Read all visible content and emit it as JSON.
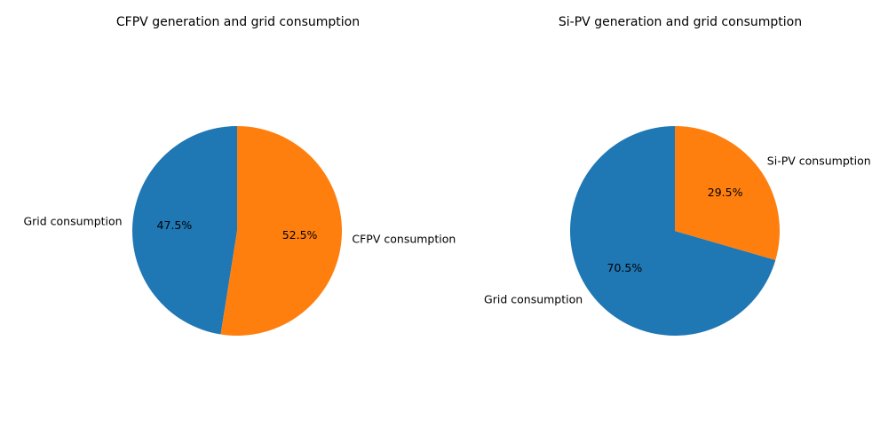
{
  "chart_data": [
    {
      "type": "pie",
      "title": "CFPV generation and grid consumption",
      "labels": [
        "Grid consumption",
        "CFPV consumption"
      ],
      "values": [
        47.5,
        52.5
      ],
      "percent_labels": [
        "47.5%",
        "52.5%"
      ],
      "colors": [
        "#1f77b4",
        "#ff7f0e"
      ],
      "start_angle_deg": 90,
      "direction": "counterclockwise"
    },
    {
      "type": "pie",
      "title": "Si-PV generation and grid consumption",
      "labels": [
        "Grid consumption",
        "Si-PV consumption"
      ],
      "values": [
        70.5,
        29.5
      ],
      "percent_labels": [
        "70.5%",
        "29.5%"
      ],
      "colors": [
        "#1f77b4",
        "#ff7f0e"
      ],
      "start_angle_deg": 90,
      "direction": "counterclockwise"
    }
  ]
}
